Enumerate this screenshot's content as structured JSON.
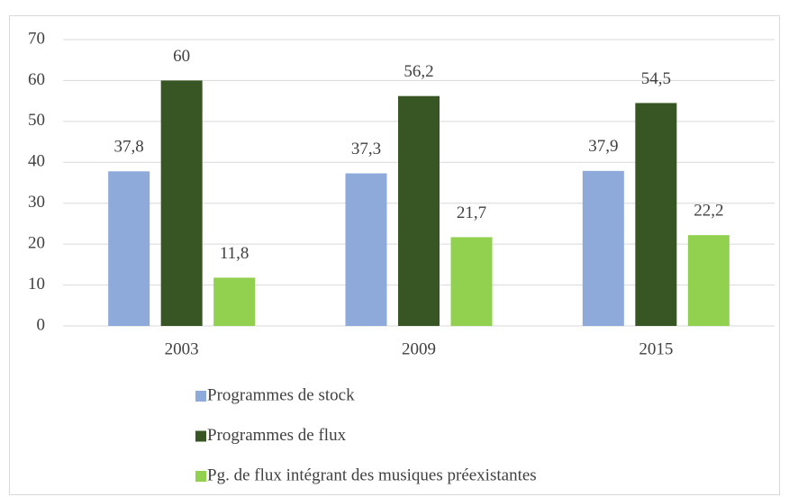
{
  "chart_data": {
    "type": "bar",
    "categories": [
      "2003",
      "2009",
      "2015"
    ],
    "series": [
      {
        "name": "Programmes de stock",
        "color": "#8eaadb",
        "values": [
          37.8,
          37.3,
          37.9
        ],
        "value_labels": [
          "37,8",
          "37,3",
          "37,9"
        ]
      },
      {
        "name": "Programmes de flux",
        "color": "#375623",
        "values": [
          60,
          56.2,
          54.5
        ],
        "value_labels": [
          "60",
          "56,2",
          "54,5"
        ]
      },
      {
        "name": "Pg. de flux intégrant des musiques préexistantes",
        "color": "#92d050",
        "values": [
          11.8,
          21.7,
          22.2
        ],
        "value_labels": [
          "11,8",
          "21,7",
          "22,2"
        ]
      }
    ],
    "ylim": [
      0,
      70
    ],
    "yticks": [
      0,
      10,
      20,
      30,
      40,
      50,
      60,
      70
    ],
    "grid": true,
    "legend": "bottom"
  }
}
